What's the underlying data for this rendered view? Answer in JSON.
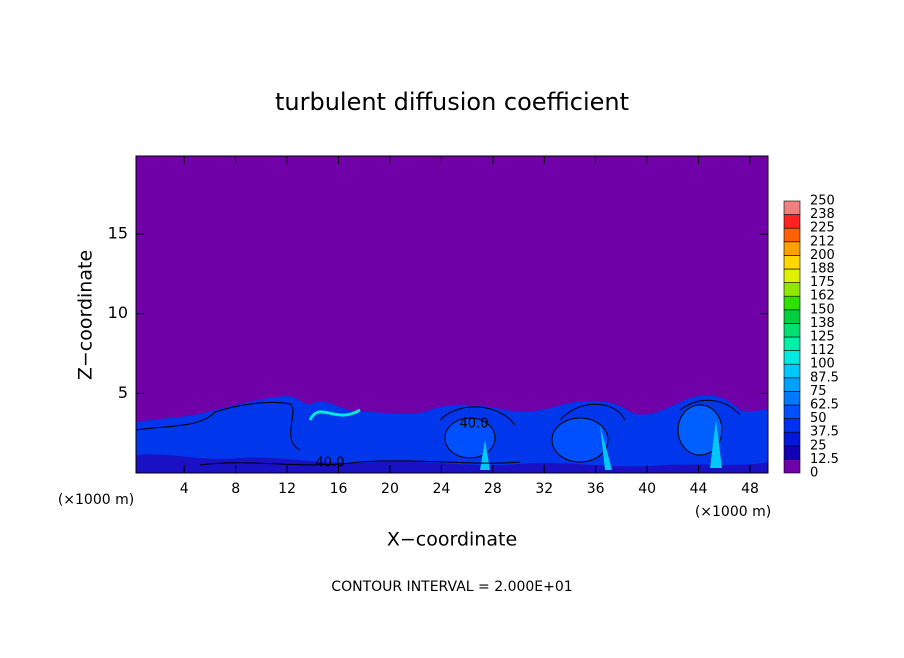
{
  "chart_data": {
    "type": "contour",
    "title": "turbulent diffusion coefficient",
    "xlabel": "X−coordinate",
    "ylabel": "Z−coordinate",
    "x_unit": "(×1000 m)",
    "x_unit_right": "(×1000 m)",
    "footer": "CONTOUR INTERVAL = 2.000E+01",
    "contour_labels": [
      "40.0",
      "40.0"
    ],
    "xlim": [
      0.25,
      49.4
    ],
    "xticks": [
      4,
      8,
      12,
      16,
      20,
      24,
      28,
      32,
      36,
      40,
      44,
      48
    ],
    "ylim": [
      0,
      19.9
    ],
    "yticks": [
      5,
      10,
      15
    ],
    "colorbar": {
      "ticks": [
        0,
        12.5,
        25,
        37.5,
        50,
        62.5,
        75,
        87.5,
        100,
        {
          "value": 112.5,
          "label": "112"
        },
        125,
        {
          "value": 137.5,
          "label": "138"
        },
        150,
        {
          "value": 162.5,
          "label": "162"
        },
        175,
        {
          "value": 187.5,
          "label": "188"
        },
        200,
        {
          "value": 212.5,
          "label": "212"
        },
        225,
        {
          "value": 237.5,
          "label": "238"
        },
        250
      ],
      "colors": [
        "#7000a8",
        "#1400b4",
        "#0018d8",
        "#0030f0",
        "#0050ff",
        "#0078ff",
        "#00a0ff",
        "#00c8f8",
        "#00e8e0",
        "#00f0a8",
        "#00e070",
        "#00d040",
        "#30e000",
        "#90e800",
        "#e0f000",
        "#ffd800",
        "#ffa000",
        "#ff6000",
        "#ff2020",
        "#f08080"
      ]
    }
  }
}
